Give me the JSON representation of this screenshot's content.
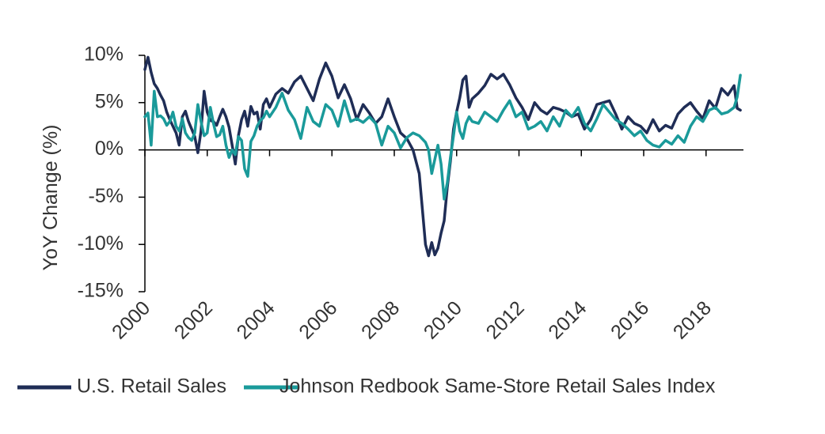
{
  "chart_data": {
    "type": "line",
    "title": "",
    "xlabel": "",
    "ylabel": "YoY Change (%)",
    "xlim": [
      2000,
      2019.2
    ],
    "ylim": [
      -15,
      10
    ],
    "x_ticks": [
      2000,
      2002,
      2004,
      2006,
      2008,
      2010,
      2012,
      2014,
      2016,
      2018
    ],
    "x_tick_labels": [
      "2000",
      "2002",
      "2004",
      "2006",
      "2008",
      "2010",
      "2012",
      "2014",
      "2016",
      "2018"
    ],
    "y_ticks": [
      10,
      5,
      0,
      -5,
      -10,
      -15
    ],
    "y_tick_labels": [
      "10%",
      "5%",
      "0%",
      "-5%",
      "-10%",
      "-15%"
    ],
    "grid": false,
    "legend_position": "bottom",
    "colors": {
      "retail": "#1f2d56",
      "redbook": "#1a9a9a",
      "axis": "#000000"
    },
    "series": [
      {
        "name": "U.S. Retail Sales",
        "color": "#1f2d56",
        "x": [
          2000.0,
          2000.1,
          2000.2,
          2000.3,
          2000.4,
          2000.5,
          2000.6,
          2000.7,
          2000.8,
          2000.9,
          2001.0,
          2001.1,
          2001.2,
          2001.3,
          2001.4,
          2001.5,
          2001.6,
          2001.7,
          2001.8,
          2001.9,
          2002.0,
          2002.1,
          2002.2,
          2002.3,
          2002.4,
          2002.5,
          2002.6,
          2002.7,
          2002.8,
          2002.9,
          2003.0,
          2003.1,
          2003.2,
          2003.3,
          2003.4,
          2003.5,
          2003.6,
          2003.7,
          2003.8,
          2003.9,
          2004.0,
          2004.2,
          2004.4,
          2004.6,
          2004.8,
          2005.0,
          2005.2,
          2005.4,
          2005.6,
          2005.8,
          2006.0,
          2006.2,
          2006.4,
          2006.6,
          2006.8,
          2007.0,
          2007.2,
          2007.4,
          2007.6,
          2007.8,
          2008.0,
          2008.2,
          2008.4,
          2008.6,
          2008.8,
          2009.0,
          2009.1,
          2009.2,
          2009.3,
          2009.4,
          2009.5,
          2009.6,
          2009.7,
          2009.8,
          2009.9,
          2010.0,
          2010.1,
          2010.2,
          2010.3,
          2010.4,
          2010.5,
          2010.7,
          2010.9,
          2011.1,
          2011.3,
          2011.5,
          2011.7,
          2011.9,
          2012.1,
          2012.3,
          2012.5,
          2012.7,
          2012.9,
          2013.1,
          2013.3,
          2013.5,
          2013.7,
          2013.9,
          2014.1,
          2014.3,
          2014.5,
          2014.7,
          2014.9,
          2015.1,
          2015.3,
          2015.5,
          2015.7,
          2015.9,
          2016.1,
          2016.3,
          2016.5,
          2016.7,
          2016.9,
          2017.1,
          2017.3,
          2017.5,
          2017.7,
          2017.9,
          2018.1,
          2018.3,
          2018.5,
          2018.7,
          2018.9,
          2019.0,
          2019.1
        ],
        "values": [
          8.5,
          9.8,
          8.2,
          7.0,
          6.5,
          5.8,
          5.2,
          4.0,
          3.2,
          2.5,
          1.8,
          0.5,
          3.5,
          4.1,
          3.0,
          2.2,
          1.4,
          -0.3,
          2.0,
          6.2,
          4.0,
          3.1,
          3.0,
          2.6,
          3.5,
          4.3,
          3.5,
          2.4,
          0.5,
          -1.5,
          1.5,
          3.2,
          4.1,
          2.5,
          4.6,
          3.8,
          4.0,
          2.2,
          4.8,
          5.4,
          4.5,
          5.9,
          6.5,
          6.0,
          7.2,
          7.8,
          6.5,
          5.2,
          7.5,
          9.2,
          7.8,
          5.5,
          6.9,
          5.4,
          3.2,
          4.8,
          3.9,
          2.8,
          3.5,
          5.4,
          3.5,
          1.8,
          1.2,
          0.0,
          -2.5,
          -10.0,
          -11.2,
          -9.8,
          -11.1,
          -10.4,
          -8.8,
          -7.5,
          -4.0,
          -1.2,
          2.2,
          4.0,
          5.5,
          7.4,
          7.8,
          4.5,
          5.4,
          6.0,
          6.8,
          8.0,
          7.5,
          8.0,
          6.9,
          5.5,
          4.5,
          3.2,
          5.0,
          4.2,
          3.8,
          4.5,
          4.3,
          4.0,
          3.5,
          3.8,
          2.2,
          3.2,
          4.8,
          5.0,
          5.2,
          3.8,
          2.2,
          3.5,
          2.8,
          2.5,
          1.8,
          3.2,
          2.0,
          2.6,
          2.3,
          3.8,
          4.5,
          5.0,
          4.1,
          3.3,
          5.2,
          4.4,
          6.5,
          5.8,
          6.8,
          4.4,
          4.2
        ]
      },
      {
        "name": "Johnson Redbook Same-Store Retail Sales Index",
        "color": "#1a9a9a",
        "x": [
          2000.0,
          2000.1,
          2000.2,
          2000.3,
          2000.4,
          2000.5,
          2000.6,
          2000.7,
          2000.8,
          2000.9,
          2001.0,
          2001.1,
          2001.2,
          2001.3,
          2001.4,
          2001.5,
          2001.6,
          2001.7,
          2001.8,
          2001.9,
          2002.0,
          2002.1,
          2002.2,
          2002.3,
          2002.4,
          2002.5,
          2002.6,
          2002.7,
          2002.8,
          2002.9,
          2003.0,
          2003.1,
          2003.2,
          2003.3,
          2003.4,
          2003.5,
          2003.6,
          2003.7,
          2003.8,
          2003.9,
          2004.0,
          2004.2,
          2004.4,
          2004.6,
          2004.8,
          2005.0,
          2005.2,
          2005.4,
          2005.6,
          2005.8,
          2006.0,
          2006.2,
          2006.4,
          2006.6,
          2006.8,
          2007.0,
          2007.2,
          2007.4,
          2007.6,
          2007.8,
          2008.0,
          2008.2,
          2008.4,
          2008.6,
          2008.8,
          2009.0,
          2009.1,
          2009.2,
          2009.3,
          2009.4,
          2009.5,
          2009.6,
          2009.7,
          2009.8,
          2009.9,
          2010.0,
          2010.1,
          2010.2,
          2010.3,
          2010.4,
          2010.5,
          2010.7,
          2010.9,
          2011.1,
          2011.3,
          2011.5,
          2011.7,
          2011.9,
          2012.1,
          2012.3,
          2012.5,
          2012.7,
          2012.9,
          2013.1,
          2013.3,
          2013.5,
          2013.7,
          2013.9,
          2014.1,
          2014.3,
          2014.5,
          2014.7,
          2014.9,
          2015.1,
          2015.3,
          2015.5,
          2015.7,
          2015.9,
          2016.1,
          2016.3,
          2016.5,
          2016.7,
          2016.9,
          2017.1,
          2017.3,
          2017.5,
          2017.7,
          2017.9,
          2018.1,
          2018.3,
          2018.5,
          2018.7,
          2018.9,
          2019.0,
          2019.1
        ],
        "values": [
          3.5,
          3.9,
          0.5,
          6.2,
          3.5,
          3.6,
          3.3,
          2.6,
          3.0,
          4.0,
          2.5,
          2.0,
          3.3,
          1.8,
          1.3,
          1.0,
          1.8,
          4.8,
          3.0,
          1.5,
          1.8,
          4.5,
          2.8,
          1.4,
          1.6,
          2.5,
          0.5,
          -0.8,
          0.0,
          -0.5,
          1.4,
          1.0,
          -2.0,
          -2.8,
          0.9,
          1.5,
          2.5,
          3.1,
          3.4,
          4.1,
          3.5,
          4.5,
          6.0,
          4.2,
          3.2,
          1.2,
          4.5,
          3.0,
          2.5,
          4.8,
          4.2,
          2.5,
          5.2,
          3.0,
          3.3,
          2.9,
          3.5,
          2.8,
          0.5,
          2.5,
          1.8,
          0.2,
          1.3,
          1.8,
          1.5,
          0.8,
          0.0,
          -2.5,
          -1.0,
          0.5,
          -1.5,
          -5.2,
          -3.5,
          -0.8,
          1.5,
          4.0,
          2.0,
          1.2,
          2.8,
          3.5,
          3.0,
          2.8,
          4.0,
          3.5,
          3.0,
          4.2,
          5.2,
          3.5,
          4.0,
          2.2,
          2.5,
          3.0,
          2.0,
          3.5,
          2.5,
          4.2,
          3.5,
          4.5,
          2.8,
          2.0,
          3.3,
          4.8,
          4.0,
          3.2,
          2.8,
          2.2,
          1.5,
          2.0,
          1.0,
          0.5,
          0.3,
          1.0,
          0.6,
          1.5,
          0.8,
          2.5,
          3.5,
          3.0,
          4.2,
          4.5,
          3.8,
          4.0,
          4.5,
          5.6,
          7.9
        ]
      }
    ]
  }
}
